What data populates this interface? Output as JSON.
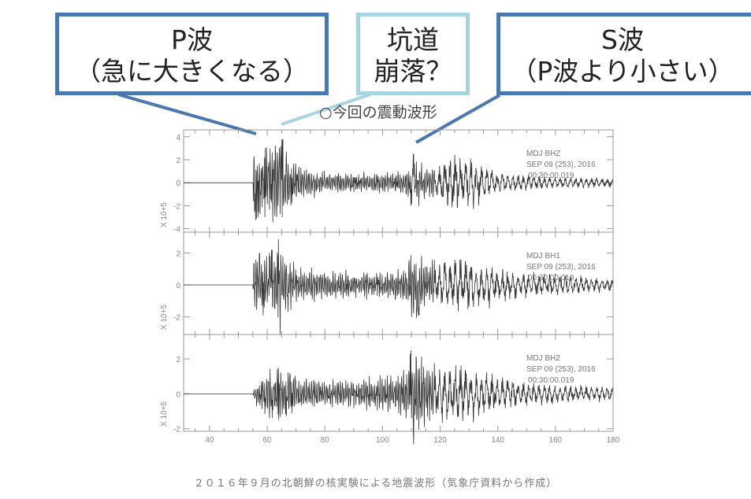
{
  "callouts": {
    "p_wave": {
      "line1": "P波",
      "line2": "（急に大きくなる）"
    },
    "collapse": {
      "line1": "坑道",
      "line2": "崩落？"
    },
    "s_wave": {
      "line1": "S波",
      "line2": "（P波より小さい）"
    }
  },
  "caption": "２０１６年９月の北朝鮮の核実験による地震波形（気象庁資料から作成）",
  "colors": {
    "callout_dark": "#4a77ae",
    "callout_light": "#a8d4df",
    "trace": "#333333"
  },
  "chart_data": {
    "type": "line",
    "title": "○今回の震動波形",
    "xlim": [
      31,
      180
    ],
    "x_ticks": [
      "40",
      "60",
      "80",
      "100",
      "120",
      "140",
      "160",
      "180"
    ],
    "x_tick_values": [
      40,
      60,
      80,
      100,
      120,
      140,
      160,
      180
    ],
    "panels": [
      {
        "name": "MDJ BHZ",
        "date": "SEP 09 (253), 2016",
        "time": "00:30:00.019",
        "ylabel": "X 10+5",
        "ylim": [
          -4.3,
          4.6
        ],
        "y_ticks": [
          4,
          2,
          0,
          -2,
          -4
        ],
        "y_tick_labels": [
          "4",
          "2",
          "0",
          "-2",
          "-4"
        ],
        "envelope": [
          [
            31,
            0
          ],
          [
            55,
            0
          ],
          [
            55.5,
            3.4
          ],
          [
            58,
            2.6
          ],
          [
            64,
            4.5
          ],
          [
            68,
            1.8
          ],
          [
            80,
            1.0
          ],
          [
            100,
            0.9
          ],
          [
            108,
            1.0
          ],
          [
            111,
            2.6
          ],
          [
            115,
            1.2
          ],
          [
            125,
            2.6
          ],
          [
            133,
            2.0
          ],
          [
            140,
            0.9
          ],
          [
            160,
            0.5
          ],
          [
            180,
            0.4
          ]
        ]
      },
      {
        "name": "MDJ BH1",
        "date": "SEP 09 (253), 2016",
        "time": "00:30:00.019",
        "ylabel": "X 10+5",
        "ylim": [
          -3.1,
          3.3
        ],
        "y_ticks": [
          2,
          0,
          -2
        ],
        "y_tick_labels": [
          "2",
          "0",
          "-2"
        ],
        "envelope": [
          [
            31,
            0
          ],
          [
            55,
            0
          ],
          [
            55.5,
            2.1
          ],
          [
            60,
            1.8
          ],
          [
            64,
            2.9
          ],
          [
            68,
            1.4
          ],
          [
            80,
            0.9
          ],
          [
            100,
            0.8
          ],
          [
            108,
            1.1
          ],
          [
            111,
            2.2
          ],
          [
            116,
            1.3
          ],
          [
            125,
            1.8
          ],
          [
            133,
            1.5
          ],
          [
            145,
            0.9
          ],
          [
            165,
            0.6
          ],
          [
            180,
            0.4
          ]
        ]
      },
      {
        "name": "MDJ BH2",
        "date": "SEP 09 (253), 2016",
        "time": "00:30:00.019",
        "ylabel": "X 10+5",
        "ylim": [
          -2.15,
          3.4
        ],
        "y_ticks": [
          2,
          0,
          -2
        ],
        "y_tick_labels": [
          "2",
          "0",
          "-2"
        ],
        "envelope": [
          [
            31,
            0
          ],
          [
            55,
            0
          ],
          [
            56,
            0.6
          ],
          [
            60,
            1.3
          ],
          [
            64,
            1.5
          ],
          [
            70,
            1.0
          ],
          [
            85,
            0.8
          ],
          [
            100,
            1.0
          ],
          [
            108,
            1.5
          ],
          [
            111,
            3.0
          ],
          [
            116,
            1.6
          ],
          [
            125,
            1.7
          ],
          [
            135,
            1.4
          ],
          [
            145,
            0.8
          ],
          [
            165,
            0.5
          ],
          [
            180,
            0.4
          ]
        ]
      }
    ]
  }
}
